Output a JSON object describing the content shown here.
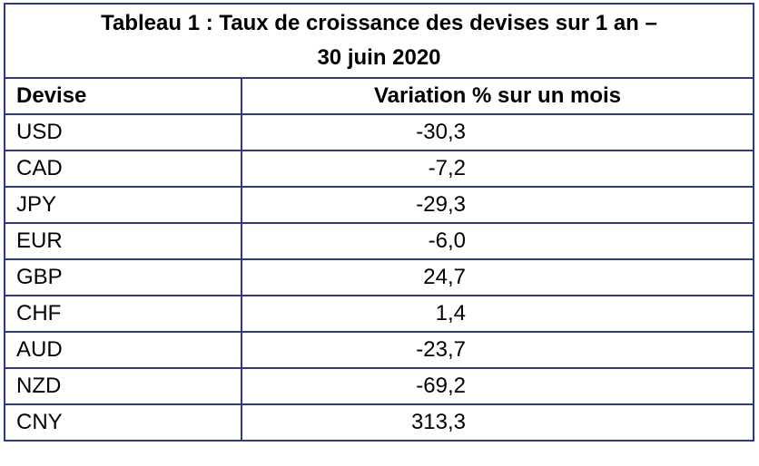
{
  "table": {
    "title": [
      "Tableau 1 : Taux de croissance des devises sur 1 an –",
      "30 juin 2020"
    ],
    "header": [
      "Devise",
      "Variation % sur un mois"
    ],
    "rows": [
      [
        "USD",
        "-30,3"
      ],
      [
        "CAD",
        "-7,2"
      ],
      [
        "JPY",
        "-29,3"
      ],
      [
        "EUR",
        "-6,0"
      ],
      [
        "GBP",
        "24,7"
      ],
      [
        "CHF",
        "1,4"
      ],
      [
        "AUD",
        "-23,7"
      ],
      [
        "NZD",
        "-69,2"
      ],
      [
        "CNY",
        "313,3"
      ]
    ]
  }
}
